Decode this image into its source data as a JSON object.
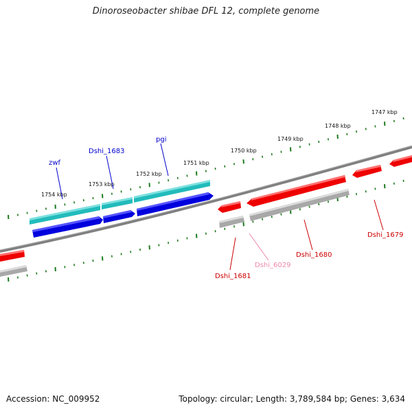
{
  "title": "Dinoroseobacter shibae DFL 12, complete genome",
  "footer": {
    "accession": "Accession: NC_009952",
    "summary": "Topology: circular; Length: 3,789,584 bp; Genes: 3,634"
  },
  "scale": {
    "unit": "kbp",
    "ticks": [
      "1747 kbp",
      "1748 kbp",
      "1749 kbp",
      "1750 kbp",
      "1751 kbp",
      "1752 kbp",
      "1753 kbp",
      "1754 kbp"
    ]
  },
  "genes": {
    "zwf": "zwf",
    "dshi_1683": "Dshi_1683",
    "pgi": "pgi",
    "dshi_1681": "Dshi_1681",
    "dshi_6029": "Dshi_6029",
    "dshi_1680": "Dshi_1680",
    "dshi_1679": "Dshi_1679"
  },
  "colors": {
    "backbone": "#808080",
    "tick": "#1e7a1e",
    "cds_forward": "#0000dd",
    "gene_forward": "#22bbbb",
    "cds_reverse": "#ee0000",
    "gene_reverse": "#a8a8a8",
    "label_forward": "#0000cc",
    "label_reverse": "#cc0000",
    "label_pseudo": "#ee88aa"
  }
}
